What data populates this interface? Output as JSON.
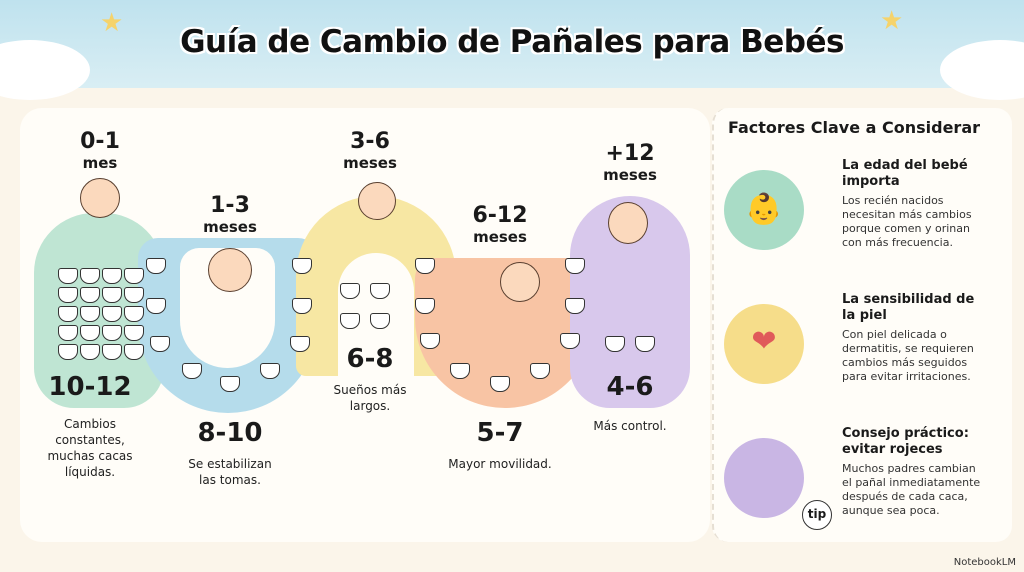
{
  "title": "Guía de Cambio de Pañales para Bebés",
  "stages": [
    {
      "age": "0-1",
      "unit": "mes",
      "count": "10-12",
      "desc": "Cambios constantes, muchas cacas líquidas.",
      "color": "#bfe5d3"
    },
    {
      "age": "1-3",
      "unit": "meses",
      "count": "8-10",
      "desc": "Se estabilizan las tomas.",
      "color": "#b5dceb"
    },
    {
      "age": "3-6",
      "unit": "meses",
      "count": "6-8",
      "desc": "Sueños más largos.",
      "color": "#f7e7a3"
    },
    {
      "age": "6-12",
      "unit": "meses",
      "count": "5-7",
      "desc": "Mayor movilidad.",
      "color": "#f8c4a4"
    },
    {
      "age": "+12",
      "unit": "meses",
      "count": "4-6",
      "desc": "Más control.",
      "color": "#d8c8ec"
    }
  ],
  "factors": {
    "heading": "Factores Clave a Considerar",
    "items": [
      {
        "title": "La edad del bebé importa",
        "text": "Los recién nacidos necesitan más cambios porque comen y orinan con más frecuencia.",
        "color": "#d3eee2"
      },
      {
        "title": "La sensibilidad de la piel",
        "text": "Con piel delicada o dermatitis, se requieren cambios más seguidos para evitar irritaciones.",
        "color": "#faf0c2"
      },
      {
        "title": "Consejo práctico: evitar rojeces",
        "text": "Muchos padres cambian el pañal inmediatamente después de cada caca, aunque sea poca.",
        "color": "#e6dcf3"
      }
    ],
    "tip_label": "tip"
  },
  "watermark": "NotebookLM"
}
